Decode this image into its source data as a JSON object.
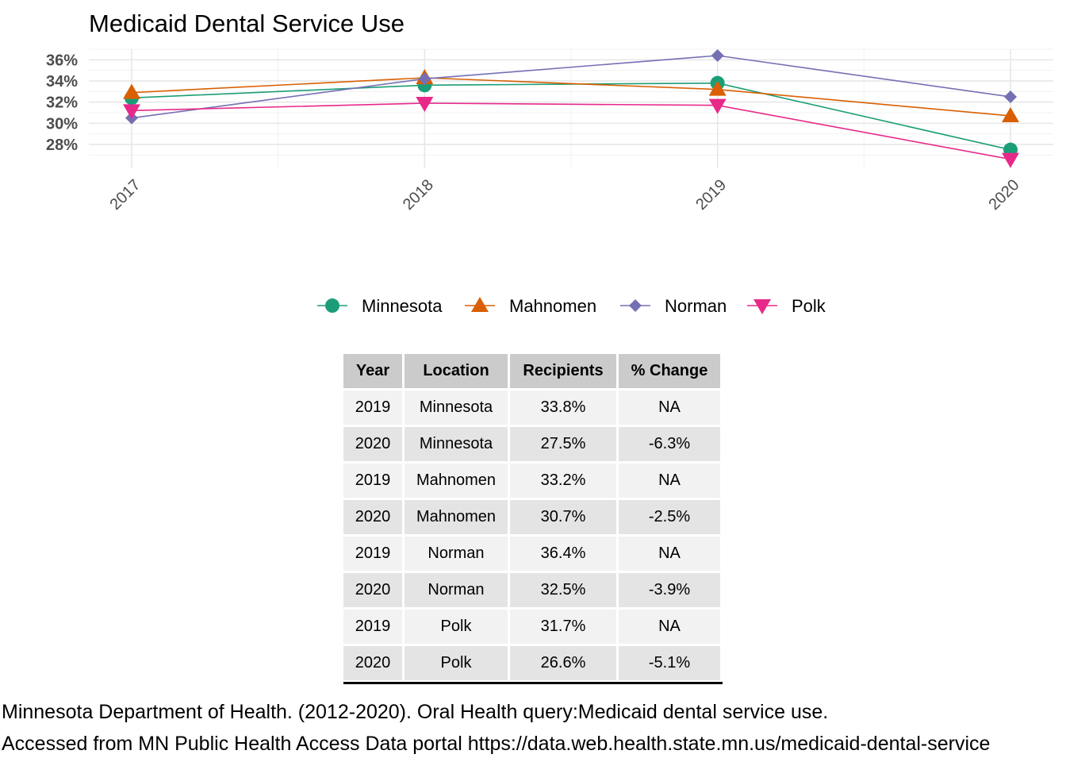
{
  "chart_data": {
    "type": "line",
    "title": "Medicaid Dental Service Use",
    "x": [
      "2017",
      "2018",
      "2019",
      "2020"
    ],
    "yticks": [
      "28%",
      "30%",
      "32%",
      "34%",
      "36%"
    ],
    "ylim": [
      26.5,
      37.0
    ],
    "grid": true,
    "legend_position": "bottom",
    "series": [
      {
        "name": "Minnesota",
        "color": "#1b9e77",
        "marker": "circle",
        "values": [
          32.4,
          33.6,
          33.8,
          27.5
        ]
      },
      {
        "name": "Mahnomen",
        "color": "#d95f02",
        "marker": "triangle-up",
        "values": [
          32.9,
          34.3,
          33.2,
          30.7
        ]
      },
      {
        "name": "Norman",
        "color": "#7570b3",
        "marker": "diamond",
        "values": [
          30.5,
          34.2,
          36.4,
          32.5
        ]
      },
      {
        "name": "Polk",
        "color": "#e7298a",
        "marker": "triangle-down",
        "values": [
          31.2,
          31.9,
          31.7,
          26.6
        ]
      }
    ]
  },
  "table": {
    "headers": [
      "Year",
      "Location",
      "Recipients",
      "% Change"
    ],
    "rows": [
      [
        "2019",
        "Minnesota",
        "33.8%",
        "NA"
      ],
      [
        "2020",
        "Minnesota",
        "27.5%",
        "-6.3%"
      ],
      [
        "2019",
        "Mahnomen",
        "33.2%",
        "NA"
      ],
      [
        "2020",
        "Mahnomen",
        "30.7%",
        "-2.5%"
      ],
      [
        "2019",
        "Norman",
        "36.4%",
        "NA"
      ],
      [
        "2020",
        "Norman",
        "32.5%",
        "-3.9%"
      ],
      [
        "2019",
        "Polk",
        "31.7%",
        "NA"
      ],
      [
        "2020",
        "Polk",
        "26.6%",
        "-5.1%"
      ]
    ]
  },
  "caption": {
    "line1": "Minnesota Department of Health. (2012-2020). Oral Health query:Medicaid dental service use.",
    "line2": "Accessed from MN Public Health Access Data portal https://data.web.health.state.mn.us/medicaid-dental-service"
  }
}
